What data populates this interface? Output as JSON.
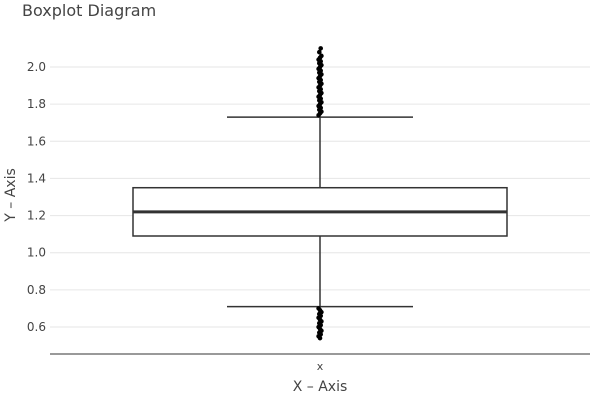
{
  "chart_data": {
    "type": "boxplot",
    "title": "Boxplot Diagram",
    "xlabel": "X – Axis",
    "ylabel": "Y – Axis",
    "categories": [
      "x"
    ],
    "ylim": [
      0.53,
      2.23
    ],
    "yticks": [
      0.6,
      0.8,
      1.0,
      1.2,
      1.4,
      1.6,
      1.8,
      2.0
    ],
    "ytick_labels": [
      "0.6",
      "0.8",
      "1.0",
      "1.2",
      "1.4",
      "1.6",
      "1.8",
      "2.0"
    ],
    "grid": true,
    "legend": "none",
    "box": {
      "category": "x",
      "whisker_low": 0.71,
      "q1": 1.09,
      "median": 1.22,
      "q3": 1.35,
      "whisker_high": 1.73
    },
    "outliers_high": [
      1.74,
      1.75,
      1.76,
      1.77,
      1.78,
      1.79,
      1.8,
      1.81,
      1.82,
      1.83,
      1.84,
      1.85,
      1.86,
      1.87,
      1.88,
      1.89,
      1.9,
      1.91,
      1.92,
      1.93,
      1.94,
      1.95,
      1.96,
      1.97,
      1.98,
      1.99,
      2.0,
      2.01,
      2.02,
      2.03,
      2.04,
      2.05,
      2.06,
      2.08,
      2.1
    ],
    "outliers_low": [
      0.7,
      0.69,
      0.68,
      0.67,
      0.66,
      0.65,
      0.64,
      0.63,
      0.62,
      0.61,
      0.6,
      0.59,
      0.58,
      0.57,
      0.56,
      0.55,
      0.54
    ],
    "colors": {
      "box_stroke": "#333333",
      "median": "#333333",
      "grid": "#e6e6e6",
      "outlier": "#000000"
    }
  }
}
